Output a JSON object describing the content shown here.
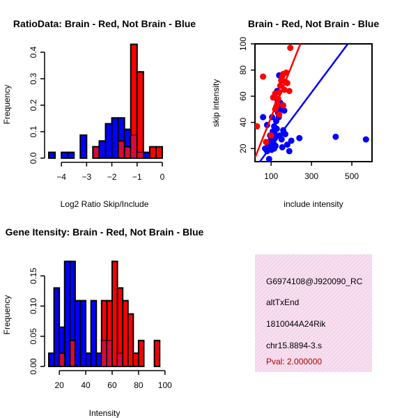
{
  "colors": {
    "red": "#ff0000",
    "blue": "#0000ff",
    "purple": "#9a1a9a",
    "panel_pink": "#f4d7ea",
    "pval_red": "#b00000"
  },
  "chart_data": [
    {
      "id": "ratio-hist",
      "type": "bar",
      "title": "RatioData: Brain - Red, Not Brain - Blue",
      "xlabel": "Log2 Ratio Skip/Include",
      "ylabel": "Frequency",
      "xlim": [
        -4.5,
        0
      ],
      "ylim": [
        0,
        0.45
      ],
      "xticks": [
        -4,
        -3,
        -2,
        -1,
        0
      ],
      "xtick_labels": [
        "−4",
        "−3",
        "−2",
        "−1",
        "0"
      ],
      "yticks": [
        0.0,
        0.1,
        0.2,
        0.3,
        0.4
      ],
      "ytick_labels": [
        "0.0",
        "0.1",
        "0.2",
        "0.3",
        "0.4"
      ],
      "bin_width": 0.25,
      "series": [
        {
          "name": "Not Brain",
          "color": "blue",
          "bins": [
            {
              "x0": -4.5,
              "value": 0.022
            },
            {
              "x0": -4.0,
              "value": 0.022
            },
            {
              "x0": -3.75,
              "value": 0.022
            },
            {
              "x0": -3.25,
              "value": 0.087
            },
            {
              "x0": -2.75,
              "value": 0.043
            },
            {
              "x0": -2.5,
              "value": 0.065
            },
            {
              "x0": -2.25,
              "value": 0.13
            },
            {
              "x0": -2.0,
              "value": 0.152
            },
            {
              "x0": -1.75,
              "value": 0.152
            },
            {
              "x0": -1.5,
              "value": 0.109
            },
            {
              "x0": -1.25,
              "value": 0.087
            },
            {
              "x0": -1.0,
              "value": 0.022
            },
            {
              "x0": -0.75,
              "value": 0.022
            }
          ]
        },
        {
          "name": "Brain",
          "color": "red",
          "bins": [
            {
              "x0": -2.75,
              "value": 0.043
            },
            {
              "x0": -1.75,
              "value": 0.065
            },
            {
              "x0": -1.5,
              "value": 0.043
            },
            {
              "x0": -1.25,
              "value": 0.43
            },
            {
              "x0": -1.0,
              "value": 0.326
            },
            {
              "x0": -0.5,
              "value": 0.043
            },
            {
              "x0": -0.25,
              "value": 0.043
            }
          ]
        }
      ]
    },
    {
      "id": "intensity-scatter",
      "type": "scatter",
      "title": "Brain - Red, Not Brain - Blue",
      "xlabel": "include intensity",
      "ylabel": "skip intensity",
      "xlim": [
        20,
        600
      ],
      "ylim": [
        10,
        100
      ],
      "xticks": [
        100,
        300,
        500
      ],
      "yticks": [
        20,
        40,
        60,
        80,
        100
      ],
      "series": [
        {
          "name": "Brain",
          "color": "red",
          "points": [
            [
              30,
              37
            ],
            [
              60,
              75
            ],
            [
              75,
              25
            ],
            [
              100,
              30
            ],
            [
              110,
              59
            ],
            [
              120,
              50
            ],
            [
              125,
              52
            ],
            [
              130,
              54
            ],
            [
              135,
              58
            ],
            [
              140,
              63
            ],
            [
              145,
              68
            ],
            [
              150,
              72
            ],
            [
              155,
              75
            ],
            [
              160,
              77
            ],
            [
              165,
              65
            ],
            [
              170,
              71
            ],
            [
              175,
              78
            ],
            [
              180,
              70
            ],
            [
              190,
              64
            ],
            [
              195,
              97
            ],
            [
              120,
              62
            ],
            [
              140,
              46
            ],
            [
              160,
              53
            ]
          ],
          "fit": [
            [
              20,
              13
            ],
            [
              245,
              100
            ]
          ]
        },
        {
          "name": "Not Brain",
          "color": "blue",
          "points": [
            [
              70,
              20
            ],
            [
              75,
              25
            ],
            [
              80,
              18
            ],
            [
              85,
              22
            ],
            [
              90,
              12
            ],
            [
              95,
              30
            ],
            [
              98,
              23
            ],
            [
              100,
              27
            ],
            [
              102,
              19
            ],
            [
              105,
              26
            ],
            [
              108,
              33
            ],
            [
              110,
              29
            ],
            [
              112,
              24
            ],
            [
              115,
              37
            ],
            [
              118,
              31
            ],
            [
              120,
              28
            ],
            [
              122,
              22
            ],
            [
              125,
              41
            ],
            [
              128,
              35
            ],
            [
              130,
              64
            ],
            [
              132,
              57
            ],
            [
              135,
              47
            ],
            [
              138,
              44
            ],
            [
              140,
              76
            ],
            [
              142,
              30
            ],
            [
              145,
              55
            ],
            [
              148,
              50
            ],
            [
              150,
              53
            ],
            [
              152,
              27
            ],
            [
              155,
              21
            ],
            [
              160,
              34
            ],
            [
              165,
              49
            ],
            [
              170,
              31
            ],
            [
              180,
              23
            ],
            [
              190,
              18
            ],
            [
              200,
              26
            ],
            [
              240,
              28
            ],
            [
              420,
              29
            ],
            [
              570,
              27
            ],
            [
              60,
              44
            ],
            [
              80,
              38
            ],
            [
              105,
              44
            ],
            [
              115,
              20
            ]
          ],
          "fit": [
            [
              20,
              5
            ],
            [
              480,
              100
            ]
          ]
        }
      ]
    },
    {
      "id": "gene-intensity-hist",
      "type": "bar",
      "title": "Gene Itensity: Brain - Red, Not Brain - Blue",
      "xlabel": "Intensity",
      "ylabel": "Frequency",
      "xlim": [
        12,
        98
      ],
      "ylim": [
        0,
        0.18
      ],
      "xticks": [
        20,
        40,
        60,
        80,
        100
      ],
      "yticks": [
        0.0,
        0.05,
        0.1,
        0.15
      ],
      "ytick_labels": [
        "0.00",
        "0.05",
        "0.10",
        "0.15"
      ],
      "bin_width": 4,
      "series": [
        {
          "name": "Not Brain",
          "color": "blue",
          "bins": [
            {
              "x0": 12,
              "value": 0.022
            },
            {
              "x0": 16,
              "value": 0.13
            },
            {
              "x0": 20,
              "value": 0.065
            },
            {
              "x0": 24,
              "value": 0.174
            },
            {
              "x0": 28,
              "value": 0.174
            },
            {
              "x0": 32,
              "value": 0.109
            },
            {
              "x0": 36,
              "value": 0.109
            },
            {
              "x0": 40,
              "value": 0.022
            },
            {
              "x0": 44,
              "value": 0.109
            },
            {
              "x0": 48,
              "value": 0.022
            },
            {
              "x0": 52,
              "value": 0.043
            },
            {
              "x0": 56,
              "value": 0.043
            },
            {
              "x0": 64,
              "value": 0.022
            }
          ]
        },
        {
          "name": "Brain",
          "color": "red",
          "bins": [
            {
              "x0": 20,
              "value": 0.022
            },
            {
              "x0": 28,
              "value": 0.043
            },
            {
              "x0": 52,
              "value": 0.109
            },
            {
              "x0": 56,
              "value": 0.109
            },
            {
              "x0": 60,
              "value": 0.174
            },
            {
              "x0": 64,
              "value": 0.13
            },
            {
              "x0": 68,
              "value": 0.109
            },
            {
              "x0": 72,
              "value": 0.087
            },
            {
              "x0": 76,
              "value": 0.022
            },
            {
              "x0": 80,
              "value": 0.043
            },
            {
              "x0": 92,
              "value": 0.043
            }
          ]
        }
      ]
    }
  ],
  "info_panel": {
    "probe_id": "G6974108@J920090_RC",
    "event_type": "altTxEnd",
    "gene_name": "1810044A24Rik",
    "location": "chr15.8894-3.s",
    "pval": "Pval: 2.000000"
  }
}
